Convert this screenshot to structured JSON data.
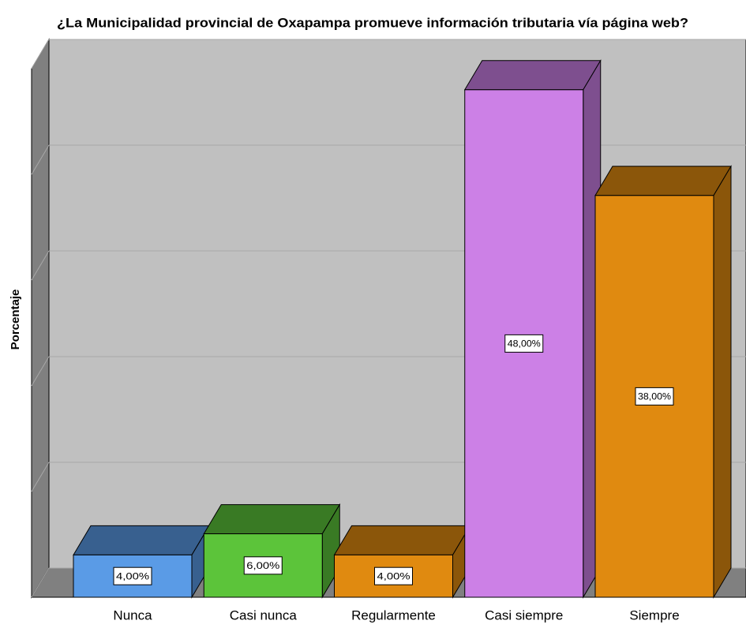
{
  "chart_data": {
    "type": "bar3d",
    "title": "¿La Municipalidad provincial de Oxapampa promueve información tributaria vía página web?",
    "y_label": "Porcentaje",
    "categories": [
      "Nunca",
      "Casi nunca",
      "Regularmente",
      "Casi siempre",
      "Siempre"
    ],
    "values": [
      4,
      6,
      4,
      48,
      38
    ],
    "value_labels": [
      "4,00%",
      "6,00%",
      "4,00%",
      "48,00%",
      "38,00%"
    ],
    "colors": [
      "#5a9be6",
      "#5cc43a",
      "#e08a10",
      "#cc80e6",
      "#e08a10"
    ],
    "ylim": [
      0,
      50
    ],
    "yticks": [
      0,
      10,
      20,
      30,
      40,
      50
    ],
    "grid": true
  }
}
